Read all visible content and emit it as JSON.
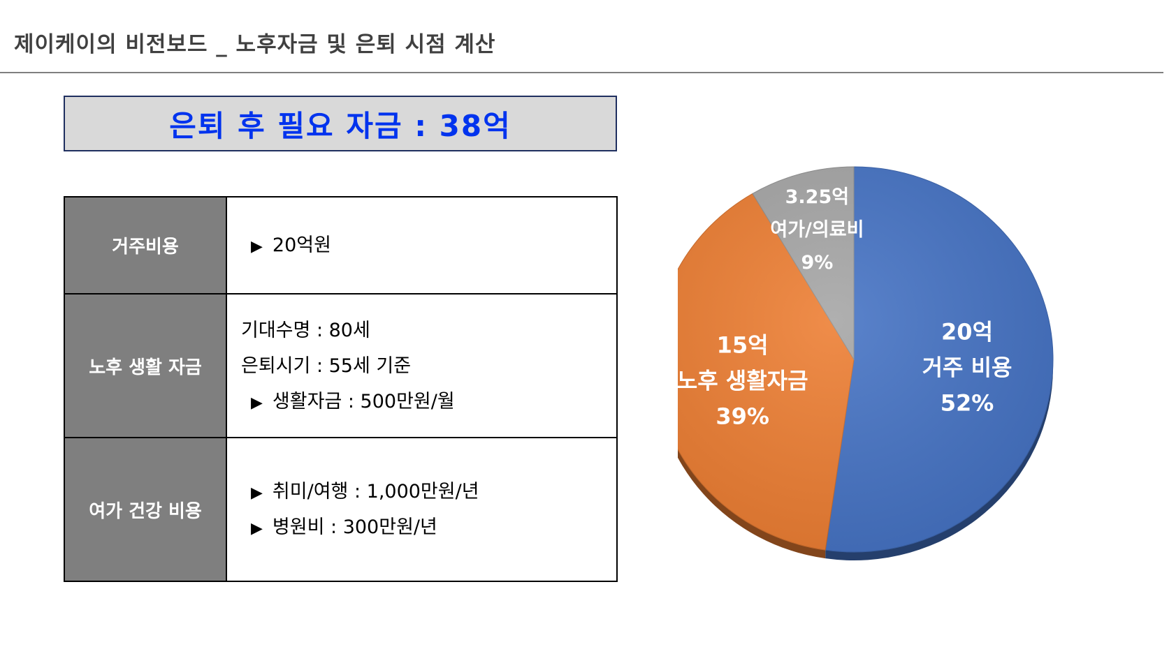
{
  "page": {
    "title": "제이케이의 비전보드 _ 노후자금 및 은퇴 시점 계산",
    "summary": "은퇴 후 필요 자금 : 38억"
  },
  "table": {
    "rows": [
      {
        "header": "거주비용",
        "lines": [
          {
            "bullet": true,
            "text": "20억원"
          }
        ]
      },
      {
        "header": "노후 생활 자금",
        "lines": [
          {
            "bullet": false,
            "text": "기대수명 : 80세"
          },
          {
            "bullet": false,
            "text": "은퇴시기 : 55세 기준"
          },
          {
            "bullet": true,
            "text": "생활자금 : 500만원/월"
          }
        ]
      },
      {
        "header": "여가 건강 비용",
        "lines": [
          {
            "bullet": true,
            "text": "취미/여행 : 1,000만원/년"
          },
          {
            "bullet": true,
            "text": "병원비 : 300만원/년"
          }
        ]
      }
    ],
    "bullet_glyph": "▶"
  },
  "chart_data": {
    "type": "pie",
    "title": "",
    "series": [
      {
        "name": "",
        "slices": [
          {
            "category": "거주 비용",
            "value": 20,
            "value_label": "20억",
            "percent_label": "52%",
            "color": "#4472c4"
          },
          {
            "category": "노후 생활자금",
            "value": 15,
            "value_label": "15억",
            "percent_label": "39%",
            "color": "#ed7d31"
          },
          {
            "category": "여가/의료비",
            "value": 3.25,
            "value_label": "3.25억",
            "percent_label": "9%",
            "color": "#a5a5a5"
          }
        ]
      }
    ],
    "start_angle_deg": 0,
    "direction": "clockwise",
    "legend": "none",
    "style": "3d-tilted"
  },
  "colors": {
    "summary_text": "#0033ee",
    "summary_background": "#d9d9d9",
    "table_header_background": "#7f7f7f",
    "title_text": "#404040"
  }
}
